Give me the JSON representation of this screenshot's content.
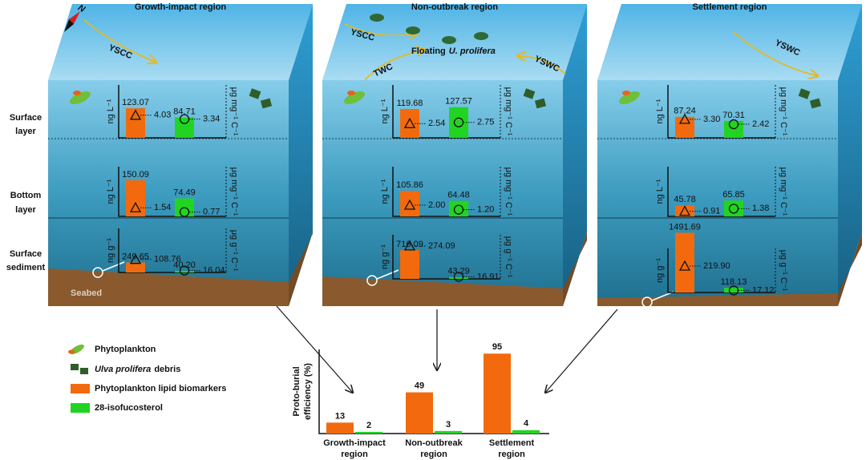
{
  "compass": "N",
  "seabed": "Seabed",
  "floating": [
    "Floating",
    "U. prolifera"
  ],
  "layer_labels": [
    [
      "Surface",
      "layer"
    ],
    [
      "Bottom",
      "layer"
    ],
    [
      "Surface",
      "sediment"
    ]
  ],
  "units": {
    "water": [
      "ng L⁻¹",
      "μg mg⁻¹ C⁻¹"
    ],
    "sediment": [
      "ng g⁻¹",
      "μg g⁻¹ C⁻¹"
    ]
  },
  "regions": [
    {
      "title": "Growth-impact region",
      "currents": [
        "YSCC"
      ],
      "panels": [
        {
          "values": [
            123.07,
            84.71
          ],
          "value_labels": [
            "123.07",
            "84.71"
          ],
          "markers": [
            4.03,
            3.34
          ],
          "marker_labels": [
            "4.03",
            "3.34"
          ]
        },
        {
          "values": [
            150.09,
            74.49
          ],
          "value_labels": [
            "150.09",
            "74.49"
          ],
          "markers": [
            1.54,
            0.77
          ],
          "marker_labels": [
            "1.54",
            "0.77"
          ]
        },
        {
          "values": [
            249.65,
            40.2
          ],
          "value_labels": [
            "249.65",
            "40.20"
          ],
          "markers": [
            108.76,
            16.04
          ],
          "marker_labels": [
            "108.76",
            "16.04"
          ]
        }
      ]
    },
    {
      "title": "Non-outbreak region",
      "currents": [
        "YSCC",
        "TWC",
        "YSWC"
      ],
      "panels": [
        {
          "values": [
            119.68,
            127.57
          ],
          "value_labels": [
            "119.68",
            "127.57"
          ],
          "markers": [
            2.54,
            2.75
          ],
          "marker_labels": [
            "2.54",
            "2.75"
          ]
        },
        {
          "values": [
            105.86,
            64.48
          ],
          "value_labels": [
            "105.86",
            "64.48"
          ],
          "markers": [
            2.0,
            1.2
          ],
          "marker_labels": [
            "2.00",
            "1.20"
          ]
        },
        {
          "values": [
            716.09,
            43.29
          ],
          "value_labels": [
            "716.09",
            "43.29"
          ],
          "markers": [
            274.09,
            16.91
          ],
          "marker_labels": [
            "274.09",
            "16.91"
          ]
        }
      ]
    },
    {
      "title": "Settlement region",
      "currents": [
        "YSWC"
      ],
      "panels": [
        {
          "values": [
            87.24,
            70.31
          ],
          "value_labels": [
            "87.24",
            "70.31"
          ],
          "markers": [
            3.3,
            2.42
          ],
          "marker_labels": [
            "3.30",
            "2.42"
          ]
        },
        {
          "values": [
            45.78,
            65.85
          ],
          "value_labels": [
            "45.78",
            "65.85"
          ],
          "markers": [
            0.91,
            1.38
          ],
          "marker_labels": [
            "0.91",
            "1.38"
          ]
        },
        {
          "values": [
            1491.69,
            118.13
          ],
          "value_labels": [
            "1491.69",
            "118.13"
          ],
          "markers": [
            219.9,
            17.12
          ],
          "marker_labels": [
            "219.90",
            "17.12"
          ]
        }
      ]
    }
  ],
  "legend": [
    {
      "label": "Phytoplankton"
    },
    {
      "label_italic": "Ulva prolifera",
      "label": "debris"
    },
    {
      "label": "Phytoplankton lipid biomarkers",
      "color": "#f26a0d"
    },
    {
      "label": "28-isofucosterol",
      "color": "#22d422"
    }
  ],
  "chart_data": {
    "type": "bar",
    "y_label": [
      "Proto-burial",
      "efficiency (%)"
    ],
    "categories": [
      [
        "Growth-impact",
        "region"
      ],
      [
        "Non-outbreak",
        "region"
      ],
      [
        "Settlement",
        "region"
      ]
    ],
    "series": [
      {
        "name": "Phytoplankton lipid biomarkers",
        "color": "#f26a0d",
        "values": [
          13,
          49,
          95
        ]
      },
      {
        "name": "28-isofucosterol",
        "color": "#22d422",
        "values": [
          2,
          3,
          4
        ]
      }
    ],
    "ylim": [
      0,
      100
    ]
  }
}
